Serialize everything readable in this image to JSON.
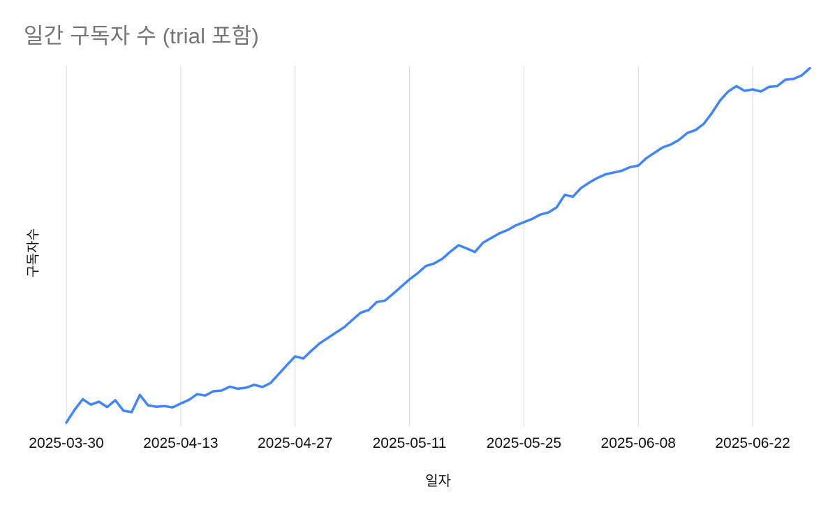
{
  "colors": {
    "line": "#4285f4",
    "gridline": "#d9d9d9",
    "title": "#757575",
    "tick_label": "#111111",
    "background": "#ffffff"
  },
  "chart_data": {
    "type": "line",
    "title": "일간 구독자 수 (trial 포함)",
    "xlabel": "일자",
    "ylabel": "구독자수",
    "legend": "none",
    "grid": "vertical-only",
    "ylim": [
      0,
      100
    ],
    "y_tick_labels": [],
    "x_tick_labels": [
      "2025-03-30",
      "2025-04-13",
      "2025-04-27",
      "2025-05-11",
      "2025-05-25",
      "2025-06-08",
      "2025-06-22"
    ],
    "x": [
      "2025-03-30",
      "2025-03-31",
      "2025-04-01",
      "2025-04-02",
      "2025-04-03",
      "2025-04-04",
      "2025-04-05",
      "2025-04-06",
      "2025-04-07",
      "2025-04-08",
      "2025-04-09",
      "2025-04-10",
      "2025-04-11",
      "2025-04-12",
      "2025-04-13",
      "2025-04-14",
      "2025-04-15",
      "2025-04-16",
      "2025-04-17",
      "2025-04-18",
      "2025-04-19",
      "2025-04-20",
      "2025-04-21",
      "2025-04-22",
      "2025-04-23",
      "2025-04-24",
      "2025-04-25",
      "2025-04-26",
      "2025-04-27",
      "2025-04-28",
      "2025-04-29",
      "2025-04-30",
      "2025-05-01",
      "2025-05-02",
      "2025-05-03",
      "2025-05-04",
      "2025-05-05",
      "2025-05-06",
      "2025-05-07",
      "2025-05-08",
      "2025-05-09",
      "2025-05-10",
      "2025-05-11",
      "2025-05-12",
      "2025-05-13",
      "2025-05-14",
      "2025-05-15",
      "2025-05-16",
      "2025-05-17",
      "2025-05-18",
      "2025-05-19",
      "2025-05-20",
      "2025-05-21",
      "2025-05-22",
      "2025-05-23",
      "2025-05-24",
      "2025-05-25",
      "2025-05-26",
      "2025-05-27",
      "2025-05-28",
      "2025-05-29",
      "2025-05-30",
      "2025-05-31",
      "2025-06-01",
      "2025-06-02",
      "2025-06-03",
      "2025-06-04",
      "2025-06-05",
      "2025-06-06",
      "2025-06-07",
      "2025-06-08",
      "2025-06-09",
      "2025-06-10",
      "2025-06-11",
      "2025-06-12",
      "2025-06-13",
      "2025-06-14",
      "2025-06-15",
      "2025-06-16",
      "2025-06-17",
      "2025-06-18",
      "2025-06-19",
      "2025-06-20",
      "2025-06-21",
      "2025-06-22",
      "2025-06-23",
      "2025-06-24",
      "2025-06-25",
      "2025-06-26",
      "2025-06-27",
      "2025-06-28",
      "2025-06-29"
    ],
    "values": [
      1.0,
      4.5,
      7.5,
      6.0,
      6.8,
      5.3,
      7.2,
      4.3,
      3.9,
      8.7,
      5.8,
      5.4,
      5.6,
      5.2,
      6.3,
      7.3,
      8.9,
      8.5,
      9.7,
      9.9,
      11.0,
      10.4,
      10.7,
      11.5,
      10.9,
      12.0,
      14.5,
      17.0,
      19.4,
      18.8,
      21.0,
      23.0,
      24.5,
      26.0,
      27.5,
      29.5,
      31.5,
      32.3,
      34.5,
      34.9,
      36.8,
      38.8,
      40.8,
      42.5,
      44.5,
      45.2,
      46.5,
      48.5,
      50.3,
      49.4,
      48.4,
      51.0,
      52.3,
      53.6,
      54.5,
      55.8,
      56.7,
      57.6,
      58.8,
      59.4,
      60.8,
      64.3,
      63.8,
      66.2,
      67.7,
      69.0,
      70.0,
      70.5,
      71.0,
      72.0,
      72.4,
      74.5,
      76.0,
      77.5,
      78.3,
      79.6,
      81.5,
      82.3,
      84.0,
      87.0,
      90.5,
      93.0,
      94.5,
      93.2,
      93.6,
      93.0,
      94.3,
      94.5,
      96.3,
      96.5,
      97.5,
      99.5
    ]
  }
}
